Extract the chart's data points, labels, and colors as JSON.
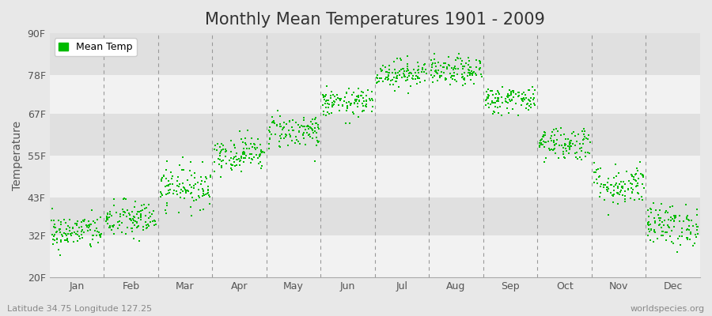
{
  "title": "Monthly Mean Temperatures 1901 - 2009",
  "ylabel": "Temperature",
  "yticks": [
    20,
    32,
    43,
    55,
    67,
    78,
    90
  ],
  "ytick_labels": [
    "20F",
    "32F",
    "43F",
    "55F",
    "67F",
    "78F",
    "90F"
  ],
  "ylim": [
    20,
    90
  ],
  "months": [
    "Jan",
    "Feb",
    "Mar",
    "Apr",
    "May",
    "Jun",
    "Jul",
    "Aug",
    "Sep",
    "Oct",
    "Nov",
    "Dec"
  ],
  "mean_temps_F": [
    33.0,
    36.5,
    46.0,
    55.5,
    62.0,
    70.0,
    78.5,
    79.0,
    71.0,
    58.5,
    46.5,
    35.0
  ],
  "std_temps_F": [
    2.5,
    2.8,
    3.0,
    2.5,
    2.5,
    2.0,
    2.0,
    2.0,
    2.0,
    2.5,
    3.0,
    3.0
  ],
  "n_years": 109,
  "dot_color": "#00bb00",
  "dot_size": 1.5,
  "background_color": "#e8e8e8",
  "plot_bg_color": "#e8e8e8",
  "band_color_light": "#f2f2f2",
  "band_color_dark": "#e0e0e0",
  "vline_color": "#999999",
  "title_fontsize": 15,
  "axis_label_fontsize": 10,
  "tick_fontsize": 9,
  "annotation_fontsize": 8,
  "bottom_left_text": "Latitude 34.75 Longitude 127.25",
  "bottom_right_text": "worldspecies.org",
  "legend_label": "Mean Temp",
  "seed": 42
}
